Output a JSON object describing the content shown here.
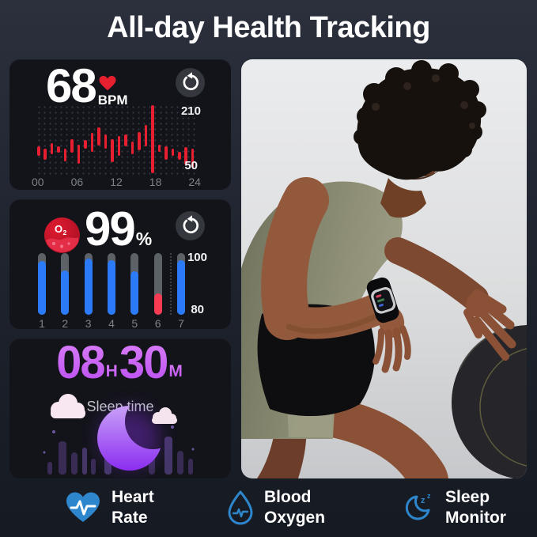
{
  "title": "All-day Health Tracking",
  "colors": {
    "page_bg_top": "#2b303c",
    "page_bg_bottom": "#161a22",
    "card_bg": "#121419",
    "hr_red": "#e81f30",
    "heart_icon_red": "#e6202f",
    "spo2_blue": "#2b7bf8",
    "spo2_red": "#f63b52",
    "track_gray": "#5d6168",
    "sleep_purple": "#c765f2",
    "moon_gradient_top": "#c9a1f8",
    "moon_gradient_bottom": "#8b2df0",
    "feature_blue": "#2e86cc",
    "photo_bg": "#dcddde"
  },
  "heart_rate_card": {
    "value": "68",
    "unit": "BPM",
    "refresh_icon": "refresh-icon",
    "chart_data": {
      "type": "bar",
      "title": "24-hour heart rate range chart",
      "x_ticks": [
        "00",
        "06",
        "12",
        "18",
        "24"
      ],
      "ylabel_top": "210",
      "ylabel_bottom": "50",
      "ylim": [
        50,
        210
      ],
      "grid": "dotted",
      "bars_top_height_pct": [
        [
          60,
          13
        ],
        [
          63,
          16
        ],
        [
          55,
          16
        ],
        [
          59,
          9
        ],
        [
          63,
          18
        ],
        [
          49,
          20
        ],
        [
          57,
          27
        ],
        [
          51,
          12
        ],
        [
          41,
          26
        ],
        [
          33,
          26
        ],
        [
          43,
          20
        ],
        [
          49,
          33
        ],
        [
          45,
          28
        ],
        [
          43,
          16
        ],
        [
          53,
          18
        ],
        [
          39,
          26
        ],
        [
          29,
          31
        ],
        [
          1,
          97
        ],
        [
          57,
          10
        ],
        [
          59,
          20
        ],
        [
          63,
          10
        ],
        [
          67,
          12
        ],
        [
          61,
          24
        ],
        [
          63,
          27
        ]
      ]
    }
  },
  "spo2_card": {
    "value": "99",
    "unit": "%",
    "icon_label_o": "O",
    "icon_label_sub": "2",
    "refresh_icon": "refresh-icon",
    "chart_data": {
      "type": "bar",
      "title": "7-day blood oxygen chart",
      "x_ticks": [
        "1",
        "2",
        "3",
        "4",
        "5",
        "6",
        "7"
      ],
      "ylabel_top": "100",
      "ylabel_bottom": "80",
      "ylim": [
        80,
        100
      ],
      "bars": [
        {
          "fill_pct": 87,
          "color": "blue"
        },
        {
          "fill_pct": 72,
          "color": "blue"
        },
        {
          "fill_pct": 91,
          "color": "blue"
        },
        {
          "fill_pct": 89,
          "color": "blue"
        },
        {
          "fill_pct": 70,
          "color": "blue"
        },
        {
          "fill_pct": 35,
          "color": "red"
        },
        {
          "fill_pct": 89,
          "color": "blue"
        }
      ]
    }
  },
  "sleep_card": {
    "hours": "08",
    "hours_unit": "H",
    "minutes": "30",
    "minutes_unit": "M",
    "label": "Sleep time"
  },
  "features": [
    {
      "icon": "heart-rate-icon",
      "line1": "Heart",
      "line2": "Rate"
    },
    {
      "icon": "blood-oxygen-icon",
      "line1": "Blood",
      "line2": "Oxygen"
    },
    {
      "icon": "sleep-monitor-icon",
      "line1": "Sleep",
      "line2": "Monitor",
      "z1": "z",
      "z2": "z"
    }
  ]
}
